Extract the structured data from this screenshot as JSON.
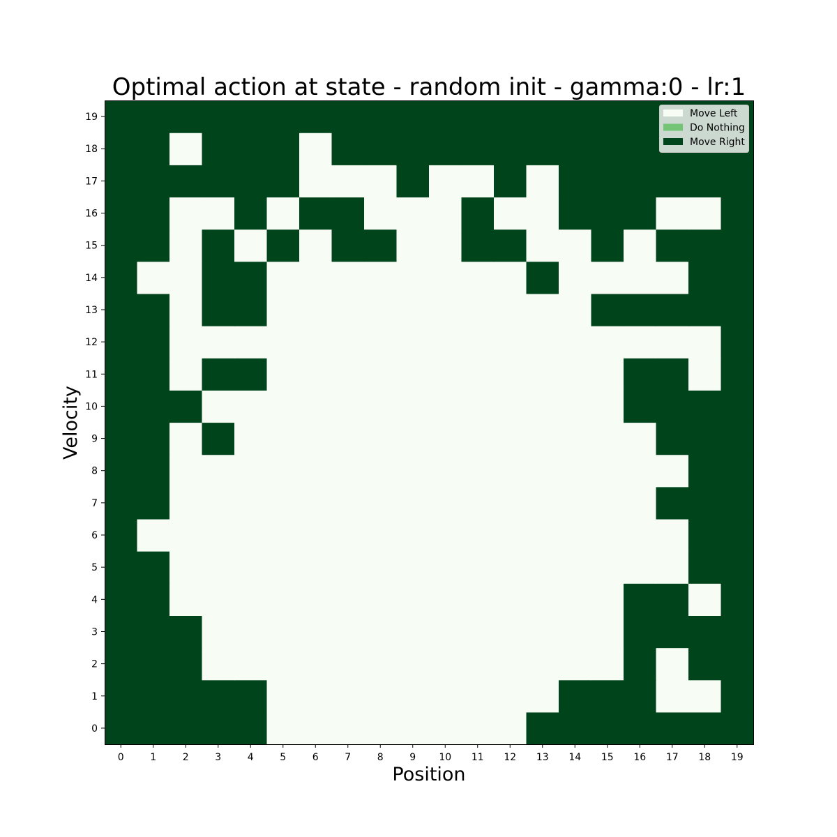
{
  "chart_data": {
    "type": "heatmap",
    "title": "Optimal action at state - random init - gamma:0 - lr:1",
    "xlabel": "Position",
    "ylabel": "Velocity",
    "x_ticks": [
      "0",
      "1",
      "2",
      "3",
      "4",
      "5",
      "6",
      "7",
      "8",
      "9",
      "10",
      "11",
      "12",
      "13",
      "14",
      "15",
      "16",
      "17",
      "18",
      "19"
    ],
    "y_ticks": [
      "0",
      "1",
      "2",
      "3",
      "4",
      "5",
      "6",
      "7",
      "8",
      "9",
      "10",
      "11",
      "12",
      "13",
      "14",
      "15",
      "16",
      "17",
      "18",
      "19"
    ],
    "grid": false,
    "legend_position": "top-right",
    "legend": [
      {
        "label": "Move Left",
        "value": 0,
        "color": "#f7fcf5"
      },
      {
        "label": "Do Nothing",
        "value": 1,
        "color": "#74c476"
      },
      {
        "label": "Move Right",
        "value": 2,
        "color": "#00441b"
      }
    ],
    "value_encoding": {
      "0": "Move Left",
      "1": "Do Nothing",
      "2": "Move Right"
    },
    "rows_by_velocity": [
      [
        2,
        2,
        2,
        2,
        2,
        0,
        0,
        0,
        0,
        0,
        0,
        0,
        0,
        2,
        2,
        2,
        2,
        2,
        2,
        2
      ],
      [
        2,
        2,
        2,
        2,
        2,
        0,
        0,
        0,
        0,
        0,
        0,
        0,
        0,
        0,
        2,
        2,
        2,
        0,
        0,
        2
      ],
      [
        2,
        2,
        2,
        0,
        0,
        0,
        0,
        0,
        0,
        0,
        0,
        0,
        0,
        0,
        0,
        0,
        2,
        0,
        2,
        2
      ],
      [
        2,
        2,
        2,
        0,
        0,
        0,
        0,
        0,
        0,
        0,
        0,
        0,
        0,
        0,
        0,
        0,
        2,
        2,
        2,
        2
      ],
      [
        2,
        2,
        0,
        0,
        0,
        0,
        0,
        0,
        0,
        0,
        0,
        0,
        0,
        0,
        0,
        0,
        2,
        2,
        0,
        2
      ],
      [
        2,
        2,
        0,
        0,
        0,
        0,
        0,
        0,
        0,
        0,
        0,
        0,
        0,
        0,
        0,
        0,
        0,
        0,
        2,
        2
      ],
      [
        2,
        0,
        0,
        0,
        0,
        0,
        0,
        0,
        0,
        0,
        0,
        0,
        0,
        0,
        0,
        0,
        0,
        0,
        2,
        2
      ],
      [
        2,
        2,
        0,
        0,
        0,
        0,
        0,
        0,
        0,
        0,
        0,
        0,
        0,
        0,
        0,
        0,
        0,
        2,
        2,
        2
      ],
      [
        2,
        2,
        0,
        0,
        0,
        0,
        0,
        0,
        0,
        0,
        0,
        0,
        0,
        0,
        0,
        0,
        0,
        0,
        2,
        2
      ],
      [
        2,
        2,
        0,
        2,
        0,
        0,
        0,
        0,
        0,
        0,
        0,
        0,
        0,
        0,
        0,
        0,
        0,
        2,
        2,
        2
      ],
      [
        2,
        2,
        2,
        0,
        0,
        0,
        0,
        0,
        0,
        0,
        0,
        0,
        0,
        0,
        0,
        0,
        2,
        2,
        2,
        2
      ],
      [
        2,
        2,
        0,
        2,
        2,
        0,
        0,
        0,
        0,
        0,
        0,
        0,
        0,
        0,
        0,
        0,
        2,
        2,
        0,
        2
      ],
      [
        2,
        2,
        0,
        0,
        0,
        0,
        0,
        0,
        0,
        0,
        0,
        0,
        0,
        0,
        0,
        0,
        0,
        0,
        0,
        2
      ],
      [
        2,
        2,
        0,
        2,
        2,
        0,
        0,
        0,
        0,
        0,
        0,
        0,
        0,
        0,
        0,
        2,
        2,
        2,
        2,
        2
      ],
      [
        2,
        0,
        0,
        2,
        2,
        0,
        0,
        0,
        0,
        0,
        0,
        0,
        0,
        2,
        0,
        0,
        0,
        0,
        2,
        2
      ],
      [
        2,
        2,
        0,
        2,
        0,
        2,
        0,
        2,
        2,
        0,
        0,
        2,
        2,
        0,
        0,
        2,
        0,
        2,
        2,
        2
      ],
      [
        2,
        2,
        0,
        0,
        2,
        0,
        2,
        2,
        0,
        0,
        0,
        2,
        0,
        0,
        2,
        2,
        2,
        0,
        0,
        2
      ],
      [
        2,
        2,
        2,
        2,
        2,
        2,
        0,
        0,
        0,
        2,
        0,
        0,
        2,
        0,
        2,
        2,
        2,
        2,
        2,
        2
      ],
      [
        2,
        2,
        0,
        2,
        2,
        2,
        0,
        2,
        2,
        2,
        2,
        2,
        2,
        2,
        2,
        2,
        2,
        2,
        2,
        2
      ],
      [
        2,
        2,
        2,
        2,
        2,
        2,
        2,
        2,
        2,
        2,
        2,
        2,
        2,
        2,
        2,
        2,
        2,
        2,
        2,
        2
      ]
    ]
  }
}
